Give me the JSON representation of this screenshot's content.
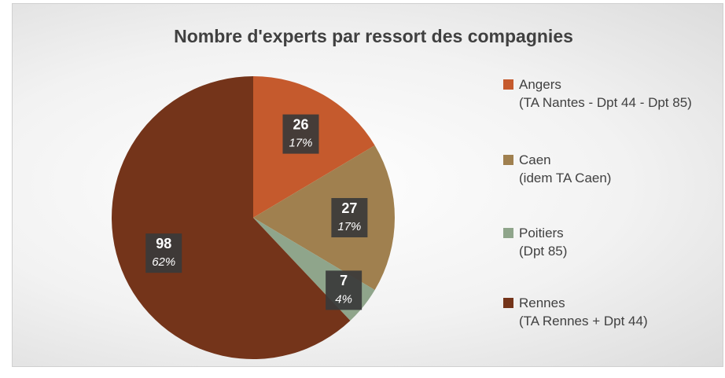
{
  "chart_data": {
    "type": "pie",
    "title": "Nombre d'experts par ressort des compagnies",
    "categories": [
      "Angers",
      "Caen",
      "Poitiers",
      "Rennes"
    ],
    "category_notes": [
      "(TA Nantes - Dpt 44 - Dpt 85)",
      "(idem TA Caen)",
      "(Dpt 85)",
      "(TA Rennes + Dpt 44)"
    ],
    "values": [
      26,
      27,
      7,
      98
    ],
    "percent_labels": [
      "17%",
      "17%",
      "4%",
      "62%"
    ],
    "colors": [
      "#c55a2d",
      "#a0804f",
      "#8fa58b",
      "#74341a"
    ],
    "legend": "right"
  }
}
